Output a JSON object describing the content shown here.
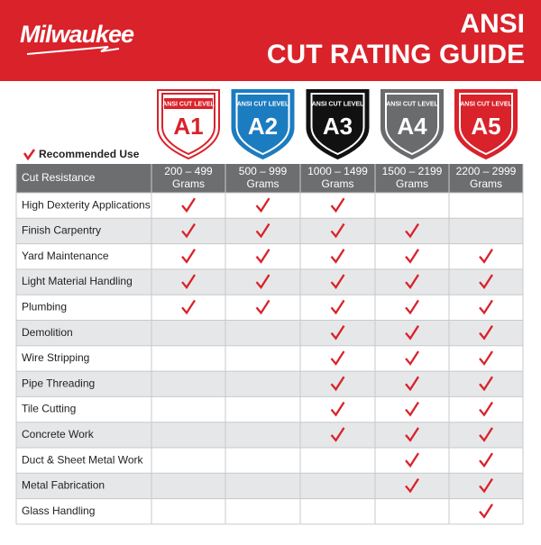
{
  "header": {
    "brand": "Milwaukee",
    "title_line1": "ANSI",
    "title_line2": "CUT RATING GUIDE"
  },
  "badge_caption": "ANSI CUT LEVEL",
  "legend": "Recommended Use",
  "table": {
    "first_header": "Cut Resistance",
    "columns": [
      {
        "level": "A1",
        "range": "200 – 499",
        "unit": "Grams",
        "color": "#d9222a"
      },
      {
        "level": "A2",
        "range": "500 – 999",
        "unit": "Grams",
        "color": "#1c7cc0"
      },
      {
        "level": "A3",
        "range": "1000 – 1499",
        "unit": "Grams",
        "color": "#111111"
      },
      {
        "level": "A4",
        "range": "1500 – 2199",
        "unit": "Grams",
        "color": "#6a6b6d"
      },
      {
        "level": "A5",
        "range": "2200 – 2999",
        "unit": "Grams",
        "color": "#d9222a"
      }
    ],
    "rows": [
      {
        "label": "High Dexterity Applications",
        "checks": [
          true,
          true,
          true,
          false,
          false
        ]
      },
      {
        "label": "Finish Carpentry",
        "checks": [
          true,
          true,
          true,
          true,
          false
        ]
      },
      {
        "label": "Yard Maintenance",
        "checks": [
          true,
          true,
          true,
          true,
          true
        ]
      },
      {
        "label": "Light Material Handling",
        "checks": [
          true,
          true,
          true,
          true,
          true
        ]
      },
      {
        "label": "Plumbing",
        "checks": [
          true,
          true,
          true,
          true,
          true
        ]
      },
      {
        "label": "Demolition",
        "checks": [
          false,
          false,
          true,
          true,
          true
        ]
      },
      {
        "label": "Wire Stripping",
        "checks": [
          false,
          false,
          true,
          true,
          true
        ]
      },
      {
        "label": "Pipe Threading",
        "checks": [
          false,
          false,
          true,
          true,
          true
        ]
      },
      {
        "label": "Tile Cutting",
        "checks": [
          false,
          false,
          true,
          true,
          true
        ]
      },
      {
        "label": "Concrete Work",
        "checks": [
          false,
          false,
          true,
          true,
          true
        ]
      },
      {
        "label": "Duct & Sheet Metal Work",
        "checks": [
          false,
          false,
          false,
          true,
          true
        ]
      },
      {
        "label": "Metal Fabrication",
        "checks": [
          false,
          false,
          false,
          true,
          true
        ]
      },
      {
        "label": "Glass Handling",
        "checks": [
          false,
          false,
          false,
          false,
          true
        ]
      }
    ]
  }
}
